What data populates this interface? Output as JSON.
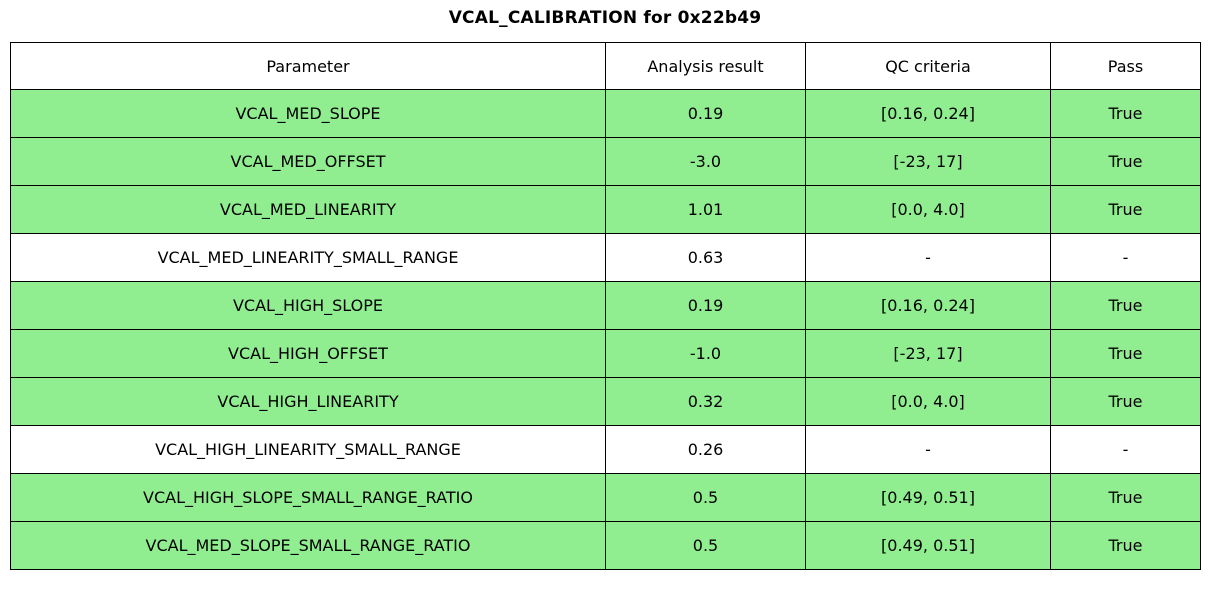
{
  "title": "VCAL_CALIBRATION for 0x22b49",
  "colors": {
    "pass_row": "#90EE90",
    "default_row": "#FFFFFF",
    "border": "#000000"
  },
  "chart_data": {
    "type": "table",
    "title": "VCAL_CALIBRATION for 0x22b49",
    "columns": [
      "Parameter",
      "Analysis result",
      "QC criteria",
      "Pass"
    ],
    "rows": [
      {
        "parameter": "VCAL_MED_SLOPE",
        "analysis_result": "0.19",
        "qc_criteria": "[0.16, 0.24]",
        "pass": "True",
        "highlighted": true
      },
      {
        "parameter": "VCAL_MED_OFFSET",
        "analysis_result": "-3.0",
        "qc_criteria": "[-23, 17]",
        "pass": "True",
        "highlighted": true
      },
      {
        "parameter": "VCAL_MED_LINEARITY",
        "analysis_result": "1.01",
        "qc_criteria": "[0.0, 4.0]",
        "pass": "True",
        "highlighted": true
      },
      {
        "parameter": "VCAL_MED_LINEARITY_SMALL_RANGE",
        "analysis_result": "0.63",
        "qc_criteria": "-",
        "pass": "-",
        "highlighted": false
      },
      {
        "parameter": "VCAL_HIGH_SLOPE",
        "analysis_result": "0.19",
        "qc_criteria": "[0.16, 0.24]",
        "pass": "True",
        "highlighted": true
      },
      {
        "parameter": "VCAL_HIGH_OFFSET",
        "analysis_result": "-1.0",
        "qc_criteria": "[-23, 17]",
        "pass": "True",
        "highlighted": true
      },
      {
        "parameter": "VCAL_HIGH_LINEARITY",
        "analysis_result": "0.32",
        "qc_criteria": "[0.0, 4.0]",
        "pass": "True",
        "highlighted": true
      },
      {
        "parameter": "VCAL_HIGH_LINEARITY_SMALL_RANGE",
        "analysis_result": "0.26",
        "qc_criteria": "-",
        "pass": "-",
        "highlighted": false
      },
      {
        "parameter": "VCAL_HIGH_SLOPE_SMALL_RANGE_RATIO",
        "analysis_result": "0.5",
        "qc_criteria": "[0.49, 0.51]",
        "pass": "True",
        "highlighted": true
      },
      {
        "parameter": "VCAL_MED_SLOPE_SMALL_RANGE_RATIO",
        "analysis_result": "0.5",
        "qc_criteria": "[0.49, 0.51]",
        "pass": "True",
        "highlighted": true
      }
    ]
  }
}
